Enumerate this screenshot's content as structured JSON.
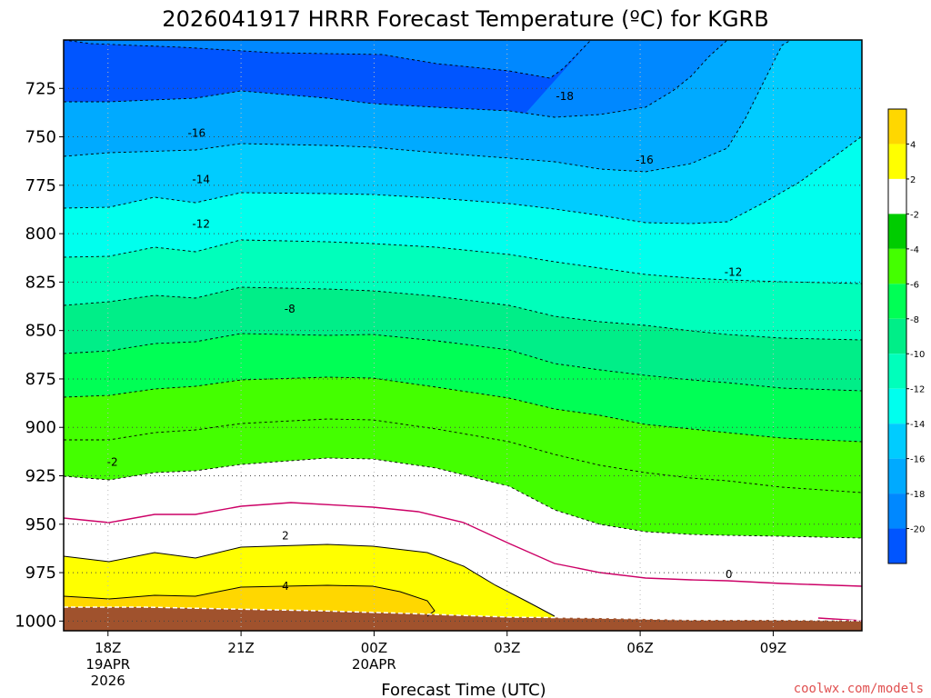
{
  "chart_data": {
    "type": "time-height filled contour",
    "title": "2026041917 HRRR Forecast Temperature (ºC) for KGRB",
    "xlabel": "Forecast Time (UTC)",
    "x_ticks": [
      {
        "hour": 0,
        "label": "18Z",
        "sub1": "19APR",
        "sub2": "2026"
      },
      {
        "hour": 3,
        "label": "21Z",
        "sub1": "",
        "sub2": ""
      },
      {
        "hour": 6,
        "label": "00Z",
        "sub1": "20APR",
        "sub2": ""
      },
      {
        "hour": 9,
        "label": "03Z",
        "sub1": "",
        "sub2": ""
      },
      {
        "hour": 12,
        "label": "06Z",
        "sub1": "",
        "sub2": ""
      },
      {
        "hour": 15,
        "label": "09Z",
        "sub1": "",
        "sub2": ""
      }
    ],
    "x_range_hours": [
      -1,
      17
    ],
    "y_ticks": [
      725,
      750,
      775,
      800,
      825,
      850,
      875,
      900,
      925,
      950,
      975,
      1000
    ],
    "y_range_hpa": [
      700,
      1005
    ],
    "grid": true,
    "colorbar": {
      "labels": [
        "4",
        "2",
        "-2",
        "-4",
        "-6",
        "-8",
        "-10",
        "-12",
        "-14",
        "-16",
        "-18",
        "-20"
      ],
      "colors": [
        "#ffd700",
        "#ffff00",
        "#ffffff",
        "#00cc00",
        "#44ff00",
        "#00ff55",
        "#00ee88",
        "#00ffbb",
        "#00ffee",
        "#00ccff",
        "#00aaff",
        "#0088ff",
        "#0055ff"
      ]
    },
    "contour_labels": [
      {
        "text": "-18",
        "hour": 10.3,
        "p": 729
      },
      {
        "text": "-16",
        "hour": 2.0,
        "p": 748
      },
      {
        "text": "-16",
        "hour": 12.1,
        "p": 762
      },
      {
        "text": "-14",
        "hour": 2.1,
        "p": 772
      },
      {
        "text": "-12",
        "hour": 2.1,
        "p": 795
      },
      {
        "text": "-12",
        "hour": 14.1,
        "p": 820
      },
      {
        "text": "-8",
        "hour": 4.1,
        "p": 839
      },
      {
        "text": "-2",
        "hour": 0.1,
        "p": 918
      },
      {
        "text": "2",
        "hour": 4.0,
        "p": 956
      },
      {
        "text": "4",
        "hour": 4.0,
        "p": 982
      },
      {
        "text": "0",
        "hour": 14.0,
        "p": 976
      }
    ],
    "credit": "coolwx.com/models"
  }
}
